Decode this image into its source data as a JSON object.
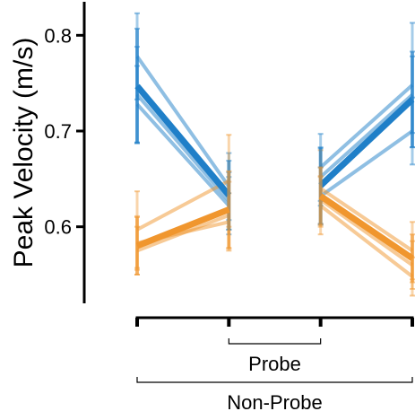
{
  "chart_data": {
    "type": "line",
    "ylabel": "Peak Velocity (m/s)",
    "ylim": [
      0.52,
      0.835
    ],
    "yticks": [
      {
        "value": 0.6,
        "label": "0.6"
      },
      {
        "value": 0.7,
        "label": "0.7"
      },
      {
        "value": 0.8,
        "label": "0.8"
      }
    ],
    "x_positions": [
      1,
      2,
      3,
      4
    ],
    "xlim": [
      1,
      4
    ],
    "brackets": [
      {
        "label": "Probe",
        "from": 2,
        "to": 3
      },
      {
        "label": "Non-Probe",
        "from": 1,
        "to": 4
      }
    ],
    "colors": {
      "blue": "#1f7fc8",
      "orange": "#f0962e",
      "axis": "#000000"
    },
    "segments": [
      {
        "name": "blue-left-mean",
        "color": "blue",
        "kind": "mean",
        "x": [
          1,
          2
        ],
        "y": [
          0.747,
          0.633
        ],
        "err": [
          0.06,
          0.036
        ]
      },
      {
        "name": "blue-left-a",
        "color": "blue",
        "kind": "individual",
        "x": [
          1,
          2
        ],
        "y": [
          0.778,
          0.642
        ],
        "err": [
          0.045,
          0.035
        ]
      },
      {
        "name": "blue-left-b",
        "color": "blue",
        "kind": "individual",
        "x": [
          1,
          2
        ],
        "y": [
          0.738,
          0.627
        ],
        "err": [
          0.05,
          0.03
        ]
      },
      {
        "name": "blue-left-c",
        "color": "blue",
        "kind": "individual",
        "x": [
          1,
          2
        ],
        "y": [
          0.728,
          0.622
        ],
        "err": [
          0.04,
          0.03
        ]
      },
      {
        "name": "orange-left-mean",
        "color": "orange",
        "kind": "mean",
        "x": [
          1,
          2
        ],
        "y": [
          0.58,
          0.618
        ],
        "err": [
          0.03,
          0.04
        ]
      },
      {
        "name": "orange-left-a",
        "color": "orange",
        "kind": "individual",
        "x": [
          1,
          2
        ],
        "y": [
          0.597,
          0.648
        ],
        "err": [
          0.04,
          0.048
        ]
      },
      {
        "name": "orange-left-b",
        "color": "orange",
        "kind": "individual",
        "x": [
          1,
          2
        ],
        "y": [
          0.575,
          0.612
        ],
        "err": [
          0.025,
          0.035
        ]
      },
      {
        "name": "orange-left-c",
        "color": "orange",
        "kind": "individual",
        "x": [
          1,
          2
        ],
        "y": [
          0.583,
          0.605
        ],
        "err": [
          0.028,
          0.03
        ]
      },
      {
        "name": "blue-right-mean",
        "color": "blue",
        "kind": "mean",
        "x": [
          3,
          4
        ],
        "y": [
          0.643,
          0.733
        ],
        "err": [
          0.04,
          0.05
        ]
      },
      {
        "name": "blue-right-a",
        "color": "blue",
        "kind": "individual",
        "x": [
          3,
          4
        ],
        "y": [
          0.662,
          0.748
        ],
        "err": [
          0.035,
          0.065
        ]
      },
      {
        "name": "blue-right-b",
        "color": "blue",
        "kind": "individual",
        "x": [
          3,
          4
        ],
        "y": [
          0.652,
          0.738
        ],
        "err": [
          0.03,
          0.04
        ]
      },
      {
        "name": "blue-right-c",
        "color": "blue",
        "kind": "individual",
        "x": [
          3,
          4
        ],
        "y": [
          0.632,
          0.7
        ],
        "err": [
          0.03,
          0.035
        ]
      },
      {
        "name": "orange-right-mean",
        "color": "orange",
        "kind": "mean",
        "x": [
          3,
          4
        ],
        "y": [
          0.632,
          0.567
        ],
        "err": [
          0.03,
          0.025
        ]
      },
      {
        "name": "orange-right-a",
        "color": "orange",
        "kind": "individual",
        "x": [
          3,
          4
        ],
        "y": [
          0.64,
          0.575
        ],
        "err": [
          0.04,
          0.03
        ]
      },
      {
        "name": "orange-right-b",
        "color": "orange",
        "kind": "individual",
        "x": [
          3,
          4
        ],
        "y": [
          0.622,
          0.548
        ],
        "err": [
          0.03,
          0.02
        ]
      },
      {
        "name": "orange-right-c",
        "color": "orange",
        "kind": "individual",
        "x": [
          3,
          4
        ],
        "y": [
          0.628,
          0.56
        ],
        "err": [
          0.025,
          0.025
        ]
      }
    ]
  }
}
